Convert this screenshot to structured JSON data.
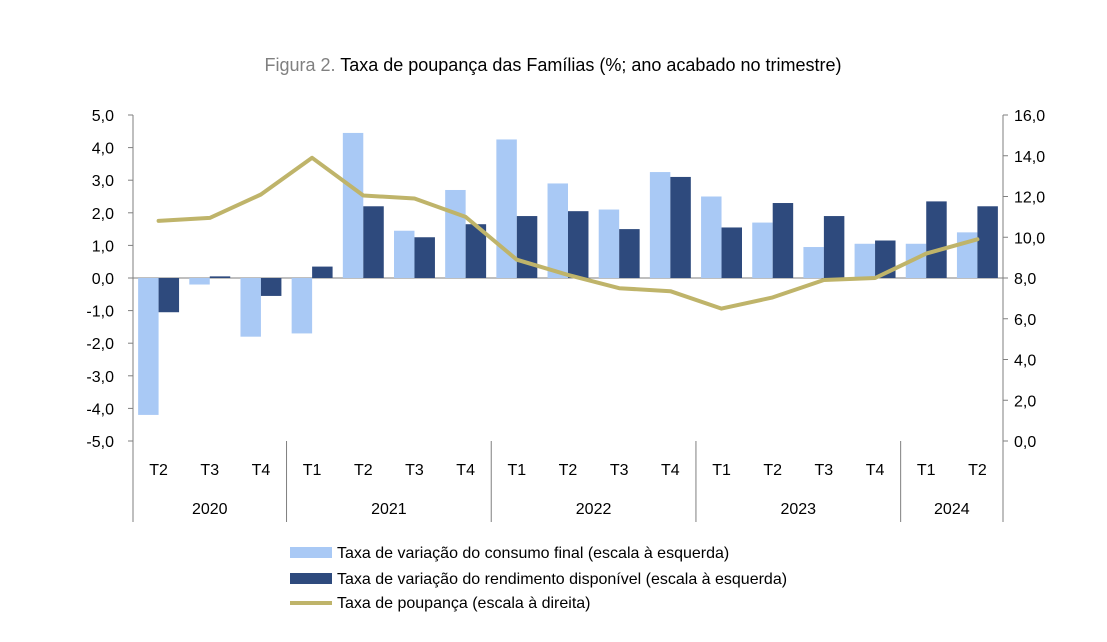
{
  "title": {
    "prefix": "Figura 2.",
    "main": "Taxa de poupança das Famílias (%; ano acabado no trimestre)"
  },
  "colors": {
    "consumo": "#a9c9f5",
    "rendimento": "#2e4a7d",
    "poupanca": "#bfb46a",
    "axis": "#7f7f7f"
  },
  "chart_data": {
    "type": "bar",
    "quarters": [
      "T2",
      "T3",
      "T4",
      "T1",
      "T2",
      "T3",
      "T4",
      "T1",
      "T2",
      "T3",
      "T4",
      "T1",
      "T2",
      "T3",
      "T4",
      "T1",
      "T2"
    ],
    "years": [
      {
        "label": "2020",
        "count": 3
      },
      {
        "label": "2021",
        "count": 4
      },
      {
        "label": "2022",
        "count": 4
      },
      {
        "label": "2023",
        "count": 4
      },
      {
        "label": "2024",
        "count": 2
      }
    ],
    "y_left": {
      "range": [
        -5,
        5
      ],
      "step": 1,
      "tick_labels": [
        "-5,0",
        "-4,0",
        "-3,0",
        "-2,0",
        "-1,0",
        "0,0",
        "1,0",
        "2,0",
        "3,0",
        "4,0",
        "5,0"
      ]
    },
    "y_right": {
      "range": [
        0,
        16
      ],
      "step": 2,
      "tick_labels": [
        "0,0",
        "2,0",
        "4,0",
        "6,0",
        "8,0",
        "10,0",
        "12,0",
        "14,0",
        "16,0"
      ]
    },
    "series": [
      {
        "name": "Taxa de variação do consumo final (escala à esquerda)",
        "type": "bar",
        "axis": "left",
        "values": [
          -4.2,
          -0.2,
          -1.8,
          -1.7,
          4.45,
          1.45,
          2.7,
          4.25,
          2.9,
          2.1,
          3.25,
          2.5,
          1.7,
          0.95,
          1.05,
          1.05,
          1.4
        ]
      },
      {
        "name": "Taxa de variação do rendimento disponível (escala à esquerda)",
        "type": "bar",
        "axis": "left",
        "values": [
          -1.05,
          0.05,
          -0.55,
          0.35,
          2.2,
          1.25,
          1.65,
          1.9,
          2.05,
          1.5,
          3.1,
          1.55,
          2.3,
          1.9,
          1.15,
          2.35,
          2.2
        ]
      },
      {
        "name": "Taxa de poupança (escala à direita)",
        "type": "line",
        "axis": "right",
        "values": [
          10.8,
          10.95,
          12.1,
          13.9,
          12.05,
          11.9,
          11.0,
          8.9,
          8.15,
          7.5,
          7.35,
          6.5,
          7.05,
          7.9,
          8.0,
          9.2,
          9.9
        ]
      }
    ]
  }
}
